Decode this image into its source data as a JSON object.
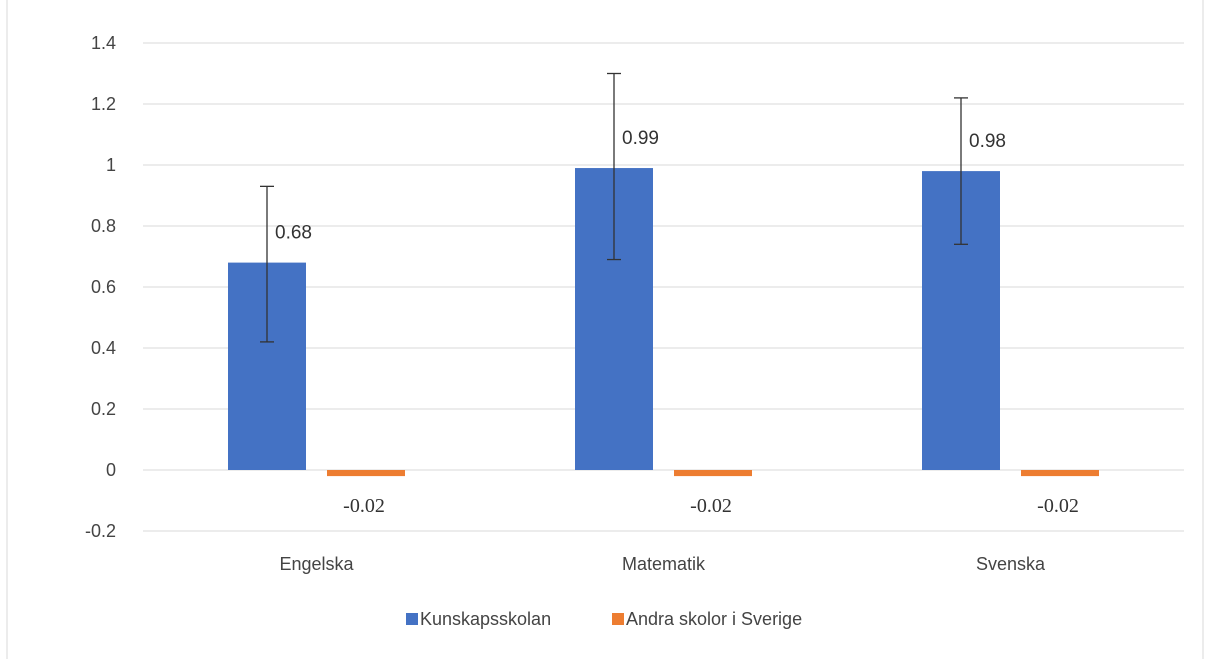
{
  "chart_data": {
    "type": "bar",
    "title": "",
    "xlabel": "",
    "ylabel": "",
    "categories": [
      "Engelska",
      "Matematik",
      "Svenska"
    ],
    "yticks": [
      "1.4",
      "1.2",
      "1",
      "0.8",
      "0.6",
      "0.4",
      "0.2",
      "0",
      "-0.2"
    ],
    "ylim": [
      -0.2,
      1.4
    ],
    "grid": true,
    "legend_position": "bottom",
    "series": [
      {
        "name": "Kunskapsskolan",
        "color": "#4472C4",
        "values": [
          0.68,
          0.99,
          0.98
        ],
        "labels": [
          "0.68",
          "0.99",
          "0.98"
        ],
        "error_low": [
          0.42,
          0.69,
          0.74
        ],
        "error_high": [
          0.93,
          1.3,
          1.22
        ]
      },
      {
        "name": "Andra skolor i Sverige",
        "color": "#ED7D31",
        "values": [
          -0.02,
          -0.02,
          -0.02
        ],
        "labels": [
          "-0.02",
          "-0.02",
          "-0.02"
        ]
      }
    ]
  }
}
